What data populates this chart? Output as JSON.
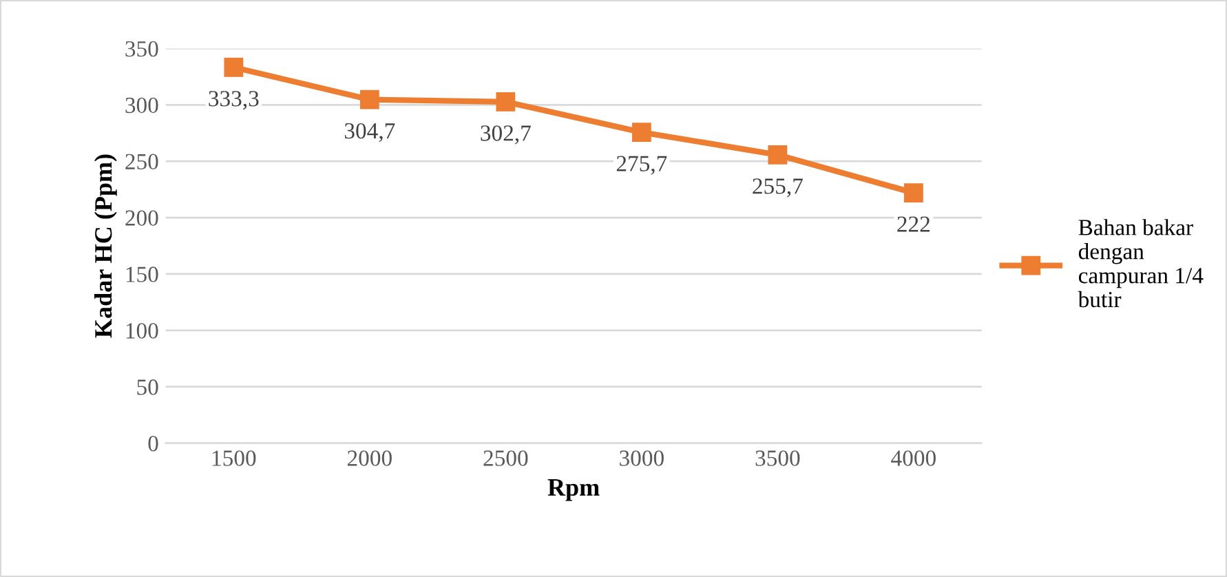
{
  "chart_data": {
    "type": "line",
    "xlabel": "Rpm",
    "ylabel": "Kadar HC (Ppm)",
    "categories": [
      "1500",
      "2000",
      "2500",
      "3000",
      "3500",
      "4000"
    ],
    "series": [
      {
        "name": "Bahan bakar dengan campuran 1/4 butir",
        "color": "#ed7d31",
        "values": [
          333.3,
          304.7,
          302.7,
          275.7,
          255.7,
          222
        ],
        "value_labels": [
          "333,3",
          "304,7",
          "302,7",
          "275,7",
          "255,7",
          "222"
        ]
      }
    ],
    "ylim": [
      0,
      350
    ],
    "yticks": [
      0,
      50,
      100,
      150,
      200,
      250,
      300,
      350
    ],
    "grid": "y",
    "legend": "right",
    "marker": "square",
    "line_style": "solid"
  }
}
